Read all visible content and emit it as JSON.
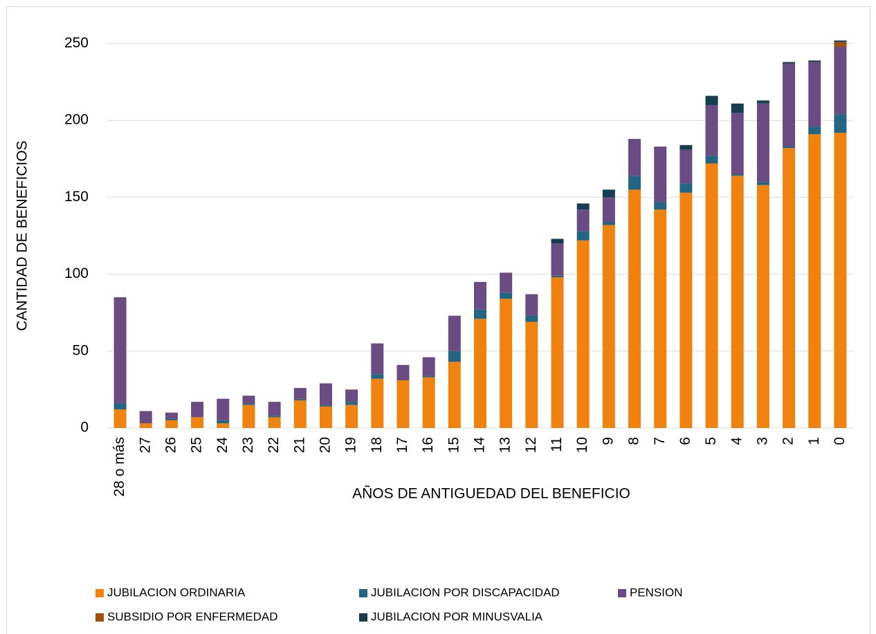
{
  "chart_data": {
    "type": "bar",
    "stacked": true,
    "x_label": "AÑOS DE ANTIGUEDAD DEL BENEFICIO",
    "y_label": "CANTIDAD DE BENEFICIOS",
    "categories": [
      "28 o más",
      "27",
      "26",
      "25",
      "24",
      "23",
      "22",
      "21",
      "20",
      "19",
      "18",
      "17",
      "16",
      "15",
      "14",
      "13",
      "12",
      "11",
      "10",
      "9",
      "8",
      "7",
      "6",
      "5",
      "4",
      "3",
      "2",
      "1",
      "0"
    ],
    "series": [
      {
        "name": "JUBILACION ORDINARIA",
        "color": "#f08210",
        "values": [
          12,
          3,
          5,
          7,
          3,
          15,
          7,
          18,
          14,
          15,
          32,
          31,
          33,
          43,
          71,
          84,
          69,
          98,
          122,
          132,
          155,
          142,
          153,
          172,
          164,
          158,
          182,
          191,
          192
        ]
      },
      {
        "name": "JUBILACION POR DISCAPACIDAD",
        "color": "#236583",
        "values": [
          4,
          0,
          1,
          0,
          2,
          1,
          1,
          1,
          1,
          2,
          3,
          0,
          1,
          7,
          6,
          4,
          4,
          1,
          6,
          2,
          9,
          5,
          6,
          5,
          1,
          2,
          1,
          5,
          12
        ]
      },
      {
        "name": "PENSION",
        "color": "#6a4c82",
        "values": [
          69,
          8,
          4,
          10,
          14,
          5,
          9,
          7,
          14,
          8,
          20,
          10,
          12,
          23,
          18,
          13,
          14,
          21,
          14,
          16,
          24,
          36,
          22,
          33,
          40,
          51,
          54,
          42,
          44
        ]
      },
      {
        "name": "SUBSIDIO POR ENFERMEDAD",
        "color": "#a0520c",
        "values": [
          0,
          0,
          0,
          0,
          0,
          0,
          0,
          0,
          0,
          0,
          0,
          0,
          0,
          0,
          0,
          0,
          0,
          0,
          0,
          0,
          0,
          0,
          0,
          0,
          0,
          0,
          0,
          0,
          3
        ]
      },
      {
        "name": "JUBILACION POR MINUSVALIA",
        "color": "#173d50",
        "values": [
          0,
          0,
          0,
          0,
          0,
          0,
          0,
          0,
          0,
          0,
          0,
          0,
          0,
          0,
          0,
          0,
          0,
          3,
          4,
          5,
          0,
          0,
          3,
          6,
          6,
          2,
          1,
          1,
          1
        ]
      }
    ],
    "ylim": [
      0,
      250
    ],
    "yticks": [
      0,
      50,
      100,
      150,
      200,
      250
    ],
    "grid": true,
    "legend": "bottom"
  }
}
